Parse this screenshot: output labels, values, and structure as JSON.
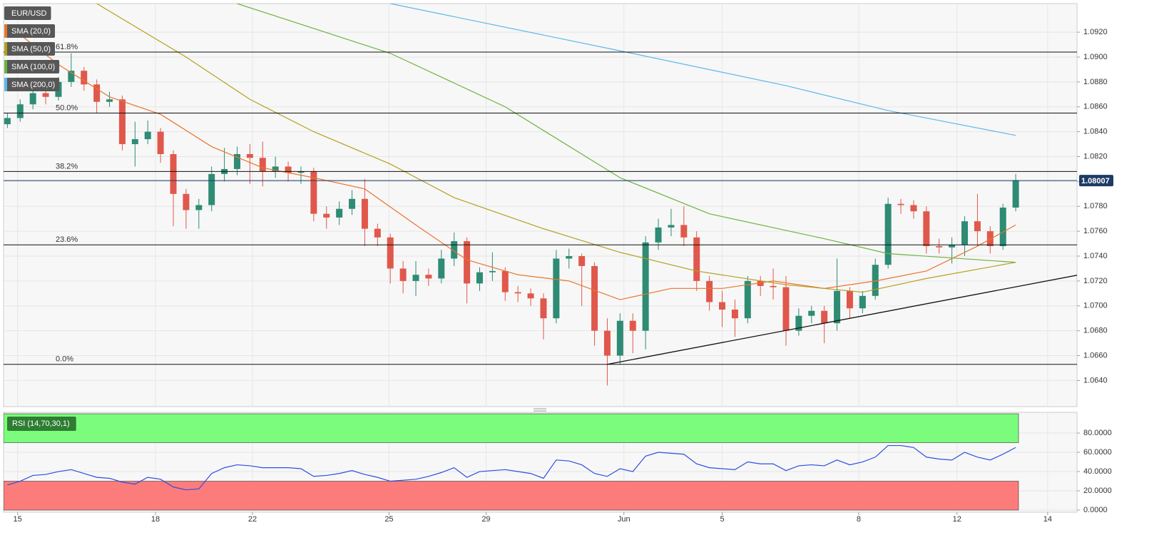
{
  "chart_data": [
    {
      "type": "candlestick",
      "symbol": "EUR/USD",
      "up_color": "#2e8b74",
      "down_color": "#e0584b",
      "open": [
        1.0846,
        1.0851,
        1.0862,
        1.0871,
        1.0868,
        1.088,
        1.0889,
        1.0878,
        1.0864,
        1.0866,
        1.083,
        1.0834,
        1.084,
        1.0822,
        1.079,
        1.0777,
        1.0781,
        1.0806,
        1.081,
        1.0822,
        1.0819,
        1.0808,
        1.0812,
        1.0807,
        1.0808,
        1.0774,
        1.0771,
        1.0778,
        1.0786,
        1.0762,
        1.0755,
        1.073,
        1.072,
        1.0725,
        1.0722,
        1.0738,
        1.0752,
        1.0718,
        1.0727,
        1.0728,
        1.0711,
        1.071,
        1.0706,
        1.069,
        1.0738,
        1.074,
        1.0732,
        1.068,
        1.066,
        1.0688,
        1.068,
        1.0751,
        1.0763,
        1.0765,
        1.0755,
        1.072,
        1.0703,
        1.0697,
        1.069,
        1.072,
        1.0716,
        1.0715,
        1.068,
        1.0692,
        1.0696,
        1.0686,
        1.0712,
        1.0698,
        1.0708,
        1.0733,
        1.0782,
        1.0781,
        1.0776,
        1.0748,
        1.0747,
        1.0749,
        1.0768,
        1.076,
        1.0748,
        1.0779
      ],
      "high": [
        1.0855,
        1.0866,
        1.0878,
        1.0874,
        1.0884,
        1.0903,
        1.0892,
        1.0882,
        1.0872,
        1.0869,
        1.0848,
        1.0849,
        1.0843,
        1.0825,
        1.0794,
        1.0786,
        1.0812,
        1.0827,
        1.0828,
        1.083,
        1.0832,
        1.082,
        1.0816,
        1.0812,
        1.0811,
        1.078,
        1.0784,
        1.0793,
        1.0802,
        1.0766,
        1.0758,
        1.0736,
        1.0736,
        1.073,
        1.0745,
        1.0759,
        1.0755,
        1.0731,
        1.0743,
        1.0731,
        1.0716,
        1.0714,
        1.071,
        1.0745,
        1.0746,
        1.0742,
        1.0735,
        1.069,
        1.0694,
        1.0694,
        1.0756,
        1.077,
        1.0778,
        1.078,
        1.076,
        1.0724,
        1.0712,
        1.0705,
        1.0724,
        1.0724,
        1.073,
        1.0724,
        1.0698,
        1.07,
        1.07,
        1.0738,
        1.0715,
        1.0712,
        1.0738,
        1.0787,
        1.0786,
        1.0785,
        1.078,
        1.0754,
        1.0755,
        1.0772,
        1.079,
        1.0764,
        1.0782,
        1.0806
      ],
      "low": [
        1.0843,
        1.0848,
        1.0858,
        1.0862,
        1.0865,
        1.0876,
        1.0873,
        1.0855,
        1.086,
        1.0825,
        1.0812,
        1.083,
        1.0815,
        1.0764,
        1.0762,
        1.0762,
        1.0776,
        1.08,
        1.0805,
        1.0798,
        1.0796,
        1.0803,
        1.08,
        1.0798,
        1.0768,
        1.0762,
        1.0765,
        1.0773,
        1.0748,
        1.0748,
        1.0718,
        1.071,
        1.0708,
        1.0716,
        1.0718,
        1.0732,
        1.0702,
        1.0712,
        1.072,
        1.0704,
        1.0703,
        1.07,
        1.0673,
        1.0686,
        1.073,
        1.07,
        1.0668,
        1.0636,
        1.0653,
        1.0662,
        1.0665,
        1.0745,
        1.0756,
        1.0748,
        1.0712,
        1.0696,
        1.0683,
        1.0675,
        1.0686,
        1.0708,
        1.0705,
        1.0668,
        1.0676,
        1.0686,
        1.067,
        1.068,
        1.069,
        1.0694,
        1.0705,
        1.073,
        1.0774,
        1.077,
        1.0742,
        1.0742,
        1.0734,
        1.074,
        1.0748,
        1.0742,
        1.0745,
        1.0776
      ],
      "close": [
        1.0851,
        1.0862,
        1.0871,
        1.0868,
        1.088,
        1.0889,
        1.0878,
        1.0864,
        1.0866,
        1.083,
        1.0834,
        1.084,
        1.0822,
        1.079,
        1.0777,
        1.0781,
        1.0806,
        1.081,
        1.0822,
        1.0819,
        1.0808,
        1.0812,
        1.0807,
        1.0808,
        1.0774,
        1.0771,
        1.0778,
        1.0786,
        1.0762,
        1.0755,
        1.073,
        1.072,
        1.0725,
        1.0722,
        1.0738,
        1.0752,
        1.0718,
        1.0727,
        1.0728,
        1.0711,
        1.071,
        1.0706,
        1.069,
        1.0738,
        1.074,
        1.0732,
        1.068,
        1.066,
        1.0688,
        1.068,
        1.0751,
        1.0763,
        1.0765,
        1.0755,
        1.072,
        1.0703,
        1.0697,
        1.069,
        1.072,
        1.0716,
        1.0715,
        1.068,
        1.0692,
        1.0696,
        1.0686,
        1.0712,
        1.0698,
        1.0708,
        1.0733,
        1.0782,
        1.0781,
        1.0776,
        1.0748,
        1.0747,
        1.0749,
        1.0768,
        1.076,
        1.0748,
        1.0779,
        1.0801
      ],
      "series": [
        {
          "name": "SMA (20,0)",
          "color": "#e8762d",
          "x": [
            0,
            4,
            8,
            12,
            16,
            20,
            24,
            28,
            32,
            36,
            40,
            44,
            48,
            52,
            56,
            60,
            64,
            68,
            72,
            76,
            79
          ],
          "values": [
            1.0926,
            1.0894,
            1.0868,
            1.0854,
            1.0828,
            1.0811,
            1.0803,
            1.0794,
            1.0765,
            1.0737,
            1.0725,
            1.072,
            1.0705,
            1.0714,
            1.0714,
            1.072,
            1.0714,
            1.072,
            1.0728,
            1.0748,
            1.0765
          ]
        },
        {
          "name": "SMA (50,0)",
          "color": "#b5a020",
          "x": [
            7,
            14,
            19,
            24,
            30,
            35,
            42,
            48,
            54,
            61,
            67,
            72,
            79
          ],
          "values": [
            1.0943,
            1.09,
            1.0866,
            1.084,
            1.0814,
            1.0787,
            1.0762,
            1.0743,
            1.0728,
            1.0717,
            1.0711,
            1.0722,
            1.0735
          ]
        },
        {
          "name": "SMA (100,0)",
          "color": "#6cb33f",
          "x": [
            18,
            30,
            39,
            48,
            55,
            64,
            69,
            79
          ],
          "values": [
            1.0943,
            1.0903,
            1.086,
            1.0803,
            1.0774,
            1.0754,
            1.0742,
            1.0735
          ]
        },
        {
          "name": "SMA (200,0)",
          "color": "#5bb8ea",
          "x": [
            30,
            48,
            61,
            69,
            79
          ],
          "values": [
            1.0943,
            1.0905,
            1.0877,
            1.0857,
            1.0837
          ]
        }
      ],
      "levels": [
        {
          "label": "61.8%",
          "value": 1.0904
        },
        {
          "label": "50.0%",
          "value": 1.0855
        },
        {
          "label": "38.2%",
          "value": 1.0808
        },
        {
          "label": "23.6%",
          "value": 1.0749
        },
        {
          "label": "0.0%",
          "value": 1.0653
        }
      ],
      "trendline": {
        "x": [
          47,
          84
        ],
        "values": [
          1.0653,
          1.0725
        ]
      },
      "last_price": {
        "value": 1.08007,
        "label": "1.08007"
      },
      "xlim": [
        -0.3,
        83.8
      ],
      "xticks": [
        {
          "value": 0.8,
          "label": "15"
        },
        {
          "value": 11.6,
          "label": "18"
        },
        {
          "value": 19.2,
          "label": "22"
        },
        {
          "value": 29.9,
          "label": "25"
        },
        {
          "value": 37.5,
          "label": "29"
        },
        {
          "value": 48.3,
          "label": "Jun"
        },
        {
          "value": 56.0,
          "label": "5"
        },
        {
          "value": 66.7,
          "label": "8"
        },
        {
          "value": 74.4,
          "label": "12"
        },
        {
          "value": 81.5,
          "label": "14"
        }
      ],
      "ylim": [
        1.0619,
        1.0943
      ],
      "yticks": [
        {
          "value": 1.064,
          "label": "1.0640"
        },
        {
          "value": 1.066,
          "label": "1.0660"
        },
        {
          "value": 1.068,
          "label": "1.0680"
        },
        {
          "value": 1.07,
          "label": "1.0700"
        },
        {
          "value": 1.072,
          "label": "1.0720"
        },
        {
          "value": 1.074,
          "label": "1.0740"
        },
        {
          "value": 1.076,
          "label": "1.0760"
        },
        {
          "value": 1.078,
          "label": "1.0780"
        },
        {
          "value": 1.08,
          "label": "1.0800"
        },
        {
          "value": 1.082,
          "label": "1.0820"
        },
        {
          "value": 1.084,
          "label": "1.0840"
        },
        {
          "value": 1.086,
          "label": "1.0860"
        },
        {
          "value": 1.088,
          "label": "1.0880"
        },
        {
          "value": 1.09,
          "label": "1.0900"
        },
        {
          "value": 1.092,
          "label": "1.0920"
        }
      ],
      "grid": true
    },
    {
      "type": "line",
      "series": [
        {
          "name": "RSI (14,70,30,1)",
          "color": "#2c4fe0",
          "values": [
            26,
            30,
            36,
            37,
            40,
            42,
            38,
            34,
            33,
            29,
            27,
            34,
            32,
            24,
            21,
            22,
            38,
            44,
            47,
            46,
            44,
            44,
            44,
            43,
            35,
            36,
            38,
            41,
            37,
            34,
            30,
            31,
            32,
            35,
            39,
            44,
            34,
            40,
            41,
            42,
            40,
            38,
            33,
            52,
            51,
            47,
            38,
            35,
            43,
            40,
            56,
            60,
            59,
            58,
            48,
            44,
            43,
            42,
            50,
            48,
            48,
            41,
            46,
            47,
            46,
            52,
            47,
            50,
            55,
            67,
            67,
            65,
            55,
            53,
            52,
            60,
            55,
            52,
            58,
            65
          ]
        }
      ],
      "bands": [
        {
          "from": 70,
          "to": 100,
          "color": "#7cfc7c"
        },
        {
          "from": 0,
          "to": 30,
          "color": "#fc7c7c"
        }
      ],
      "ylim": [
        -2.2,
        101.5
      ],
      "yticks": [
        {
          "value": 0,
          "label": "0.0000"
        },
        {
          "value": 20,
          "label": "20.0000"
        },
        {
          "value": 40,
          "label": "40.0000"
        },
        {
          "value": 60,
          "label": "60.0000"
        },
        {
          "value": 80,
          "label": "80.0000"
        }
      ],
      "grid": true
    }
  ]
}
